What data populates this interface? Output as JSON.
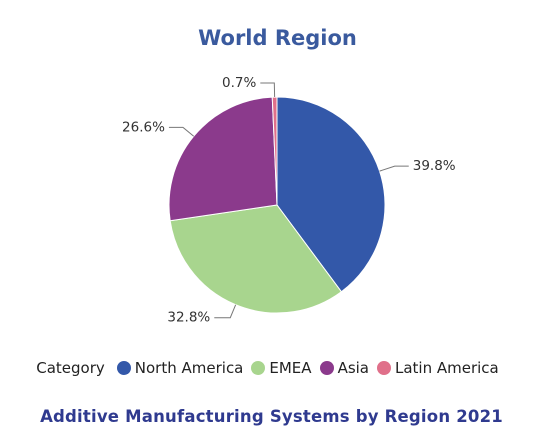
{
  "chart_data": {
    "type": "pie",
    "title": "World Region",
    "subtitle": "Additive Manufacturing Systems by Region 2021",
    "legend_title": "Category",
    "legend_position": "bottom",
    "slices": [
      {
        "name": "North America",
        "value": 39.8,
        "label": "39.8%",
        "color": "#3358a9"
      },
      {
        "name": "EMEA",
        "value": 32.8,
        "label": "32.8%",
        "color": "#a8d58e"
      },
      {
        "name": "Asia",
        "value": 26.6,
        "label": "26.6%",
        "color": "#8b3a8c"
      },
      {
        "name": "Latin America",
        "value": 0.7,
        "label": "0.7%",
        "color": "#e0708a"
      }
    ]
  }
}
